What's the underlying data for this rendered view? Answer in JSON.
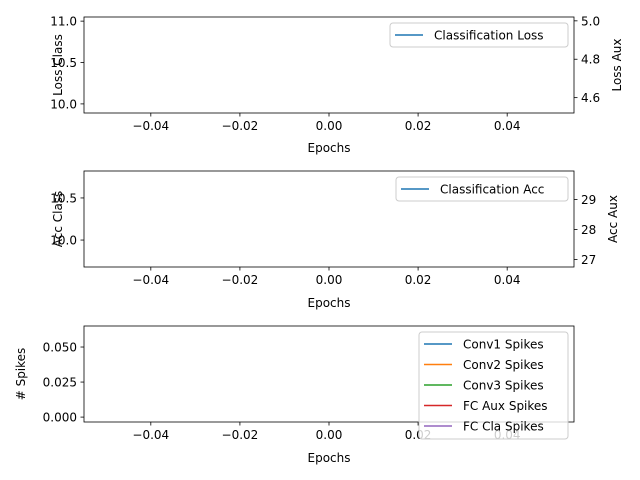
{
  "chart_data": [
    {
      "type": "line",
      "title": "",
      "xlabel": "Epochs",
      "ylabel": "Loss Class",
      "ylabel_right": "Loss Aux",
      "xlim": [
        -0.055,
        0.055
      ],
      "ylim": [
        9.89,
        11.05
      ],
      "ylim_right": [
        4.52,
        5.02
      ],
      "x_ticks": [
        "−0.04",
        "−0.02",
        "0.00",
        "0.02",
        "0.04"
      ],
      "x_tick_values": [
        -0.04,
        -0.02,
        0,
        0.02,
        0.04
      ],
      "y_ticks": [
        "10.0",
        "10.5",
        "11.0"
      ],
      "y_tick_values": [
        10.0,
        10.5,
        11.0
      ],
      "y_ticks_right": [
        "4.6",
        "4.8",
        "5.0"
      ],
      "y_tick_values_right": [
        4.6,
        4.8,
        5.0
      ],
      "legend_position": "top-right",
      "grid": false,
      "series": [
        {
          "name": "Classification Loss",
          "color": "#1f77b4",
          "x": [],
          "y": []
        }
      ]
    },
    {
      "type": "line",
      "title": "",
      "xlabel": "Epochs",
      "ylabel": "Acc Class",
      "ylabel_right": "Acc Aux",
      "xlim": [
        -0.055,
        0.055
      ],
      "ylim": [
        9.68,
        10.82
      ],
      "ylim_right": [
        26.75,
        29.95
      ],
      "x_ticks": [
        "−0.04",
        "−0.02",
        "0.00",
        "0.02",
        "0.04"
      ],
      "x_tick_values": [
        -0.04,
        -0.02,
        0,
        0.02,
        0.04
      ],
      "y_ticks": [
        "10.0",
        "10.5"
      ],
      "y_tick_values": [
        10.0,
        10.5
      ],
      "y_ticks_right": [
        "27",
        "28",
        "29"
      ],
      "y_tick_values_right": [
        27,
        28,
        29
      ],
      "legend_position": "top-right",
      "grid": false,
      "series": [
        {
          "name": "Classification Acc",
          "color": "#1f77b4",
          "x": [],
          "y": []
        }
      ]
    },
    {
      "type": "line",
      "title": "",
      "xlabel": "Epochs",
      "ylabel": "# Spikes",
      "xlim": [
        -0.055,
        0.055
      ],
      "ylim": [
        -0.0035,
        0.065
      ],
      "x_ticks": [
        "−0.04",
        "−0.02",
        "0.00",
        "0.02",
        "0.04"
      ],
      "x_tick_values": [
        -0.04,
        -0.02,
        0,
        0.02,
        0.04
      ],
      "y_ticks": [
        "0.000",
        "0.025",
        "0.050"
      ],
      "y_tick_values": [
        0,
        0.025,
        0.05
      ],
      "legend_position": "top-right",
      "grid": false,
      "series": [
        {
          "name": "Conv1 Spikes",
          "color": "#1f77b4",
          "x": [],
          "y": []
        },
        {
          "name": "Conv2 Spikes",
          "color": "#ff7f0e",
          "x": [],
          "y": []
        },
        {
          "name": "Conv3 Spikes",
          "color": "#2ca02c",
          "x": [],
          "y": []
        },
        {
          "name": "FC Aux Spikes",
          "color": "#d62728",
          "x": [],
          "y": []
        },
        {
          "name": "FC Cla Spikes",
          "color": "#9467bd",
          "x": [],
          "y": []
        }
      ]
    }
  ]
}
